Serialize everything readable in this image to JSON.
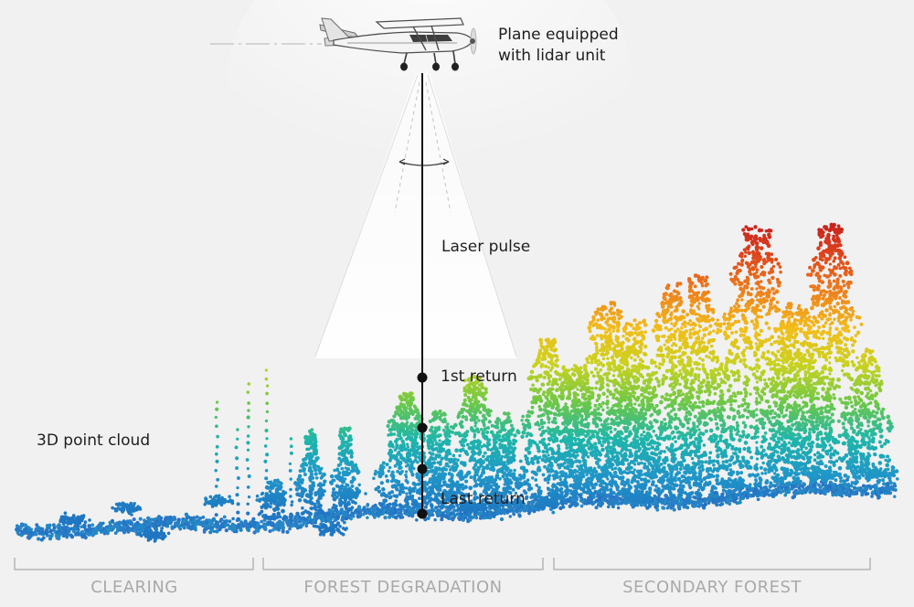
{
  "labels": {
    "plane": [
      "Plane equipped",
      "with lidar unit"
    ],
    "laser_pulse": "Laser pulse",
    "first_return": "1st return",
    "last_return": "Last return",
    "point_cloud": "3D point cloud"
  },
  "regions": [
    {
      "id": "clearing",
      "label": "CLEARING"
    },
    {
      "id": "forest-degradation",
      "label": "FOREST DEGRADATION"
    },
    {
      "id": "secondary-forest",
      "label": "SECONDARY FOREST"
    }
  ],
  "colors": {
    "background": "#f1f1f1",
    "ground": "#1f7fc4",
    "low_vegetation": "#1fb4b0",
    "mid_vegetation": "#8ccf3a",
    "canopy": "#f2c818",
    "upper_canopy": "#ec7d1c",
    "tree_top": "#c9201e",
    "pulse_line": "#111111",
    "bracket": "#b5b5b5"
  },
  "icons": [
    "airplane-icon",
    "scan-arrow-icon"
  ]
}
